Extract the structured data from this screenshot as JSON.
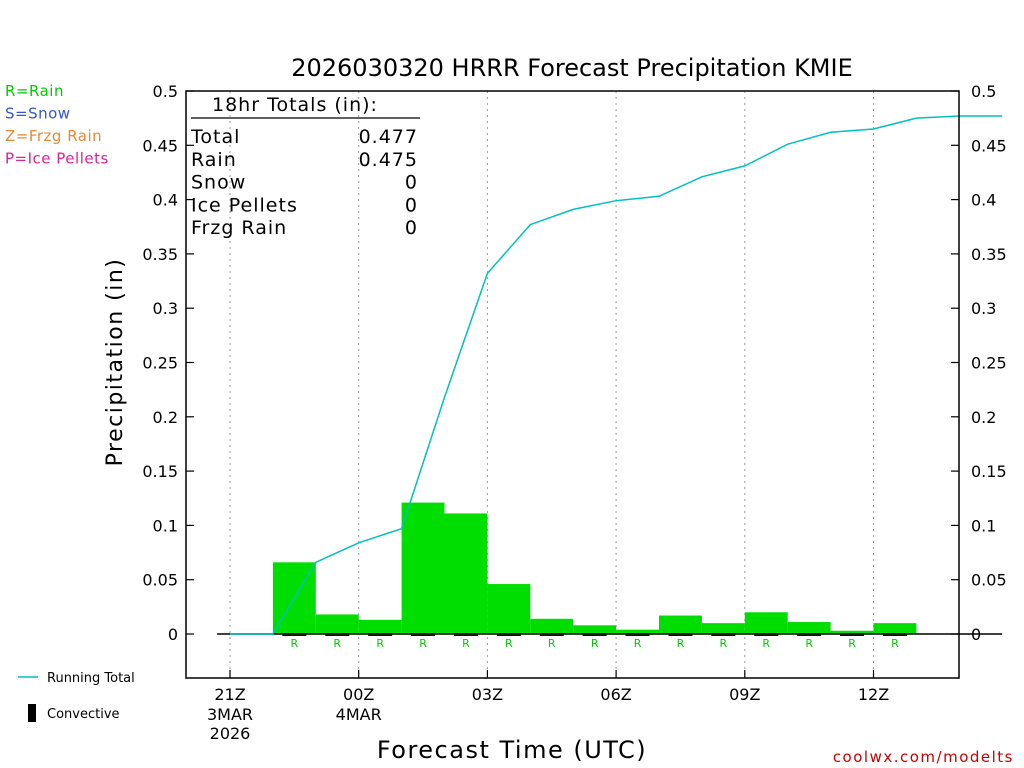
{
  "chart_data": {
    "type": "bar",
    "title": "2026030320 HRRR Forecast Precipitation KMIE",
    "xlabel": "Forecast Time (UTC)",
    "ylabel": "Precipitation (in)",
    "ylim": [
      0,
      0.5
    ],
    "y_ticks": [
      "0",
      "0.05",
      "0.1",
      "0.15",
      "0.2",
      "0.25",
      "0.3",
      "0.35",
      "0.4",
      "0.45",
      "0.5"
    ],
    "x_ticks": [
      {
        "hour": 0,
        "line1": "21Z",
        "line2": "3MAR",
        "line3": "2026"
      },
      {
        "hour": 3,
        "line1": "00Z",
        "line2": "4MAR",
        "line3": ""
      },
      {
        "hour": 6,
        "line1": "03Z",
        "line2": "",
        "line3": ""
      },
      {
        "hour": 9,
        "line1": "06Z",
        "line2": "",
        "line3": ""
      },
      {
        "hour": 12,
        "line1": "09Z",
        "line2": "",
        "line3": ""
      },
      {
        "hour": 15,
        "line1": "12Z",
        "line2": "",
        "line3": ""
      }
    ],
    "hourly_precip": {
      "forecast_hour": [
        2,
        3,
        4,
        5,
        6,
        7,
        8,
        9,
        10,
        11,
        12,
        13,
        14,
        15,
        16,
        17
      ],
      "values": [
        0.066,
        0.018,
        0.013,
        0.121,
        0.111,
        0.046,
        0.014,
        0.008,
        0.004,
        0.017,
        0.01,
        0.02,
        0.011,
        0.003,
        0.01,
        0.0
      ],
      "type_codes": [
        "R",
        "R",
        "R",
        "R",
        "R",
        "R",
        "R",
        "R",
        "R",
        "R",
        "R",
        "R",
        "R",
        "R",
        "R",
        ""
      ]
    },
    "running_total": {
      "forecast_hour": [
        0,
        1,
        2,
        3,
        4,
        5,
        6,
        7,
        8,
        9,
        10,
        11,
        12,
        13,
        14,
        15,
        16,
        17,
        18
      ],
      "values": [
        0.0,
        0.0,
        0.066,
        0.084,
        0.097,
        0.218,
        0.332,
        0.377,
        0.391,
        0.399,
        0.403,
        0.421,
        0.431,
        0.451,
        0.462,
        0.465,
        0.475,
        0.477,
        0.477
      ]
    },
    "totals_box": {
      "heading": "18hr Totals (in):",
      "rows": [
        {
          "label": "Total",
          "value": "0.477"
        },
        {
          "label": "Rain",
          "value": "0.475"
        },
        {
          "label": "Snow",
          "value": "0"
        },
        {
          "label": "Ice Pellets",
          "value": "0"
        },
        {
          "label": "Frzg Rain",
          "value": "0"
        }
      ]
    },
    "type_legend": [
      {
        "text": "R=Rain",
        "color": "#00cc00"
      },
      {
        "text": "S=Snow",
        "color": "#3355dd"
      },
      {
        "text": "Z=Frzg Rain",
        "color": "#ee8833"
      },
      {
        "text": "P=Ice Pellets",
        "color": "#dd2299"
      }
    ],
    "series_legend": [
      {
        "text": "Running Total",
        "color": "#00c0c0"
      },
      {
        "text": "Convective",
        "color": "#000000"
      }
    ],
    "credit": "coolwx.com/modelts",
    "bar_color": "#00dd00",
    "line_color": "#00c0c0",
    "credit_color": "#cc0000"
  }
}
